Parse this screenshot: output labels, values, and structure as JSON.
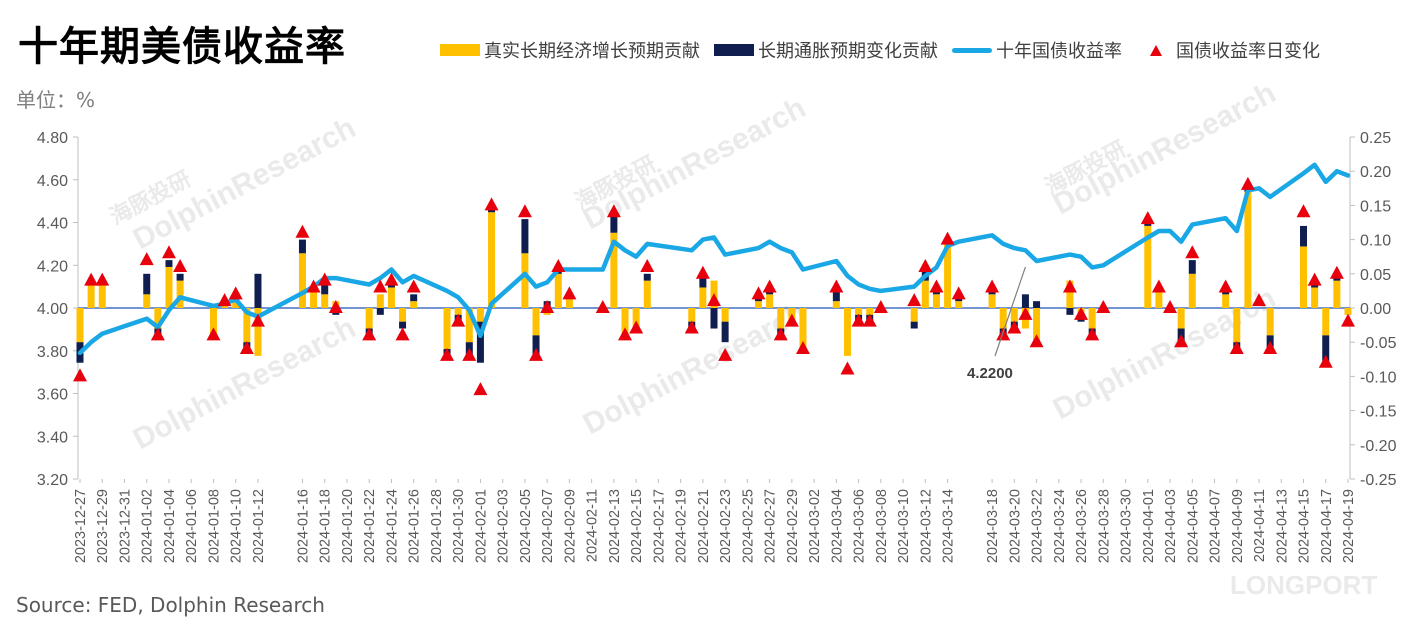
{
  "header": {
    "title": "十年期美债收益率",
    "unit": "单位：%",
    "source": "Source: FED, Dolphin Research"
  },
  "watermark": {
    "text": "DolphinResearch",
    "cn": "海豚投研",
    "brand": "LONGPORT"
  },
  "colors": {
    "real": "#ffc000",
    "infl": "#0f1e4f",
    "yield": "#1aa7e5",
    "change": "#e8000d",
    "zero": "#4472c4"
  },
  "chart_data": {
    "type": "bar",
    "title": "十年期美债收益率",
    "legend": [
      "真实长期经济增长预期贡献",
      "长期通胀预期变化贡献",
      "十年国债收益率",
      "国债收益率日变化"
    ],
    "legend_position": "top-right",
    "x_tick_labels": [
      "2023-12-27",
      "2023-12-29",
      "2023-12-31",
      "2024-01-02",
      "2024-01-04",
      "2024-01-06",
      "2024-01-08",
      "2024-01-10",
      "2024-01-12",
      "2024-01-16",
      "2024-01-18",
      "2024-01-20",
      "2024-01-22",
      "2024-01-24",
      "2024-01-26",
      "2024-01-28",
      "2024-01-30",
      "2024-02-01",
      "2024-02-03",
      "2024-02-05",
      "2024-02-07",
      "2024-02-09",
      "2024-02-11",
      "2024-02-13",
      "2024-02-15",
      "2024-02-17",
      "2024-02-19",
      "2024-02-21",
      "2024-02-23",
      "2024-02-25",
      "2024-02-27",
      "2024-02-29",
      "2024-03-02",
      "2024-03-04",
      "2024-03-06",
      "2024-03-08",
      "2024-03-10",
      "2024-03-12",
      "2024-03-14",
      "2024-03-18",
      "2024-03-20",
      "2024-03-22",
      "2024-03-24",
      "2024-03-26",
      "2024-03-28",
      "2024-03-30",
      "2024-04-01",
      "2024-04-03",
      "2024-04-05",
      "2024-04-07",
      "2024-04-09",
      "2024-04-11",
      "2024-04-13",
      "2024-04-15",
      "2024-04-17",
      "2024-04-19"
    ],
    "y_left": {
      "min": 3.2,
      "max": 4.8,
      "ticks": [
        "3.20",
        "3.40",
        "3.60",
        "3.80",
        "4.00",
        "4.20",
        "4.40",
        "4.60",
        "4.80"
      ]
    },
    "y_right": {
      "min": -0.25,
      "max": 0.25,
      "ticks": [
        "-0.25",
        "-0.20",
        "-0.15",
        "-0.10",
        "-0.05",
        "0.00",
        "0.05",
        "0.10",
        "0.15",
        "0.20",
        "0.25"
      ]
    },
    "annotation": {
      "text": "4.2200"
    },
    "dates": [
      "2023-12-27",
      "2023-12-28",
      "2023-12-29",
      "2024-01-02",
      "2024-01-03",
      "2024-01-04",
      "2024-01-05",
      "2024-01-08",
      "2024-01-09",
      "2024-01-10",
      "2024-01-11",
      "2024-01-12",
      "2024-01-16",
      "2024-01-17",
      "2024-01-18",
      "2024-01-19",
      "2024-01-22",
      "2024-01-23",
      "2024-01-24",
      "2024-01-25",
      "2024-01-26",
      "2024-01-29",
      "2024-01-30",
      "2024-01-31",
      "2024-02-01",
      "2024-02-02",
      "2024-02-05",
      "2024-02-06",
      "2024-02-07",
      "2024-02-08",
      "2024-02-09",
      "2024-02-12",
      "2024-02-13",
      "2024-02-14",
      "2024-02-15",
      "2024-02-16",
      "2024-02-20",
      "2024-02-21",
      "2024-02-22",
      "2024-02-23",
      "2024-02-26",
      "2024-02-27",
      "2024-02-28",
      "2024-02-29",
      "2024-03-01",
      "2024-03-04",
      "2024-03-05",
      "2024-03-06",
      "2024-03-07",
      "2024-03-08",
      "2024-03-11",
      "2024-03-12",
      "2024-03-13",
      "2024-03-14",
      "2024-03-15",
      "2024-03-18",
      "2024-03-19",
      "2024-03-20",
      "2024-03-21",
      "2024-03-22",
      "2024-03-25",
      "2024-03-26",
      "2024-03-27",
      "2024-03-28",
      "2024-04-01",
      "2024-04-02",
      "2024-04-03",
      "2024-04-04",
      "2024-04-05",
      "2024-04-08",
      "2024-04-09",
      "2024-04-10",
      "2024-04-11",
      "2024-04-12",
      "2024-04-15",
      "2024-04-16",
      "2024-04-17",
      "2024-04-18",
      "2024-04-19"
    ],
    "series": [
      {
        "name": "十年国债收益率",
        "axis": "left",
        "values": [
          3.79,
          3.84,
          3.88,
          3.95,
          3.91,
          3.99,
          4.05,
          4.01,
          4.02,
          4.04,
          3.98,
          3.96,
          4.07,
          4.1,
          4.14,
          4.14,
          4.11,
          4.14,
          4.18,
          4.12,
          4.15,
          4.08,
          4.05,
          3.99,
          3.87,
          4.02,
          4.16,
          4.1,
          4.12,
          4.18,
          4.18,
          4.18,
          4.31,
          4.27,
          4.24,
          4.3,
          4.27,
          4.32,
          4.33,
          4.25,
          4.28,
          4.31,
          4.28,
          4.26,
          4.18,
          4.22,
          4.15,
          4.11,
          4.09,
          4.08,
          4.1,
          4.15,
          4.19,
          4.29,
          4.31,
          4.34,
          4.3,
          4.28,
          4.27,
          4.22,
          4.25,
          4.24,
          4.19,
          4.2,
          4.33,
          4.36,
          4.36,
          4.31,
          4.39,
          4.42,
          4.36,
          4.55,
          4.56,
          4.52,
          4.63,
          4.67,
          4.59,
          4.64,
          4.62
        ]
      },
      {
        "name": "国债收益率日变化",
        "axis": "right",
        "values": [
          -0.1,
          0.04,
          0.04,
          0.07,
          -0.04,
          0.08,
          0.06,
          -0.04,
          0.01,
          0.02,
          -0.06,
          -0.02,
          0.11,
          0.03,
          0.04,
          0.0,
          -0.04,
          0.03,
          0.04,
          -0.04,
          0.03,
          -0.07,
          -0.02,
          -0.07,
          -0.12,
          0.15,
          0.14,
          -0.07,
          0.0,
          0.06,
          0.02,
          0.0,
          0.14,
          -0.04,
          -0.03,
          0.06,
          -0.03,
          0.05,
          0.01,
          -0.07,
          0.02,
          0.03,
          -0.04,
          -0.02,
          -0.06,
          0.03,
          -0.09,
          -0.02,
          -0.02,
          0.0,
          0.01,
          0.06,
          0.03,
          0.1,
          0.02,
          0.03,
          -0.04,
          -0.03,
          -0.01,
          -0.05,
          0.03,
          -0.01,
          -0.04,
          0.0,
          0.13,
          0.03,
          0.0,
          -0.05,
          0.08,
          0.03,
          -0.06,
          0.18,
          0.01,
          -0.06,
          0.14,
          0.04,
          -0.08,
          0.05,
          -0.02
        ]
      },
      {
        "name": "真实长期经济增长预期贡献",
        "axis": "right",
        "values": [
          -0.05,
          0.04,
          0.04,
          0.02,
          -0.03,
          0.06,
          0.04,
          -0.04,
          0.01,
          0.01,
          -0.05,
          -0.07,
          0.08,
          0.03,
          0.02,
          0.01,
          -0.03,
          0.02,
          0.03,
          -0.02,
          0.01,
          -0.06,
          -0.01,
          -0.05,
          -0.02,
          0.14,
          0.08,
          -0.04,
          -0.01,
          0.05,
          0.02,
          0.0,
          0.11,
          -0.04,
          -0.03,
          0.04,
          -0.02,
          0.03,
          0.04,
          -0.02,
          0.01,
          0.02,
          -0.03,
          -0.02,
          -0.06,
          0.01,
          -0.07,
          -0.01,
          -0.01,
          0.0,
          -0.02,
          0.04,
          0.02,
          0.1,
          0.01,
          0.02,
          -0.03,
          -0.02,
          -0.03,
          -0.05,
          0.04,
          -0.01,
          -0.03,
          0.0,
          0.12,
          0.03,
          0.0,
          -0.03,
          0.05,
          0.02,
          -0.05,
          0.17,
          0.0,
          -0.04,
          0.09,
          0.03,
          -0.04,
          0.04,
          -0.01
        ]
      },
      {
        "name": "长期通胀预期变化贡献",
        "axis": "right",
        "values": [
          -0.03,
          0.0,
          0.0,
          0.03,
          -0.01,
          0.01,
          0.01,
          0.0,
          0.0,
          0.01,
          -0.01,
          0.05,
          0.02,
          0.0,
          0.02,
          -0.01,
          -0.01,
          -0.01,
          0.01,
          -0.01,
          0.01,
          -0.01,
          -0.01,
          -0.02,
          -0.06,
          0.01,
          0.05,
          -0.03,
          0.01,
          0.01,
          0.0,
          0.0,
          0.03,
          0.0,
          0.0,
          0.01,
          -0.01,
          0.02,
          -0.03,
          -0.03,
          0.01,
          0.01,
          -0.01,
          0.0,
          0.0,
          0.02,
          0.0,
          -0.01,
          -0.01,
          0.0,
          -0.01,
          0.02,
          0.01,
          0.0,
          0.01,
          0.01,
          -0.01,
          -0.01,
          0.02,
          0.01,
          -0.01,
          -0.01,
          -0.01,
          0.0,
          0.01,
          0.0,
          0.0,
          -0.02,
          0.02,
          0.01,
          -0.01,
          0.01,
          0.0,
          -0.02,
          0.03,
          0.01,
          -0.04,
          0.01,
          0.0
        ]
      }
    ]
  }
}
